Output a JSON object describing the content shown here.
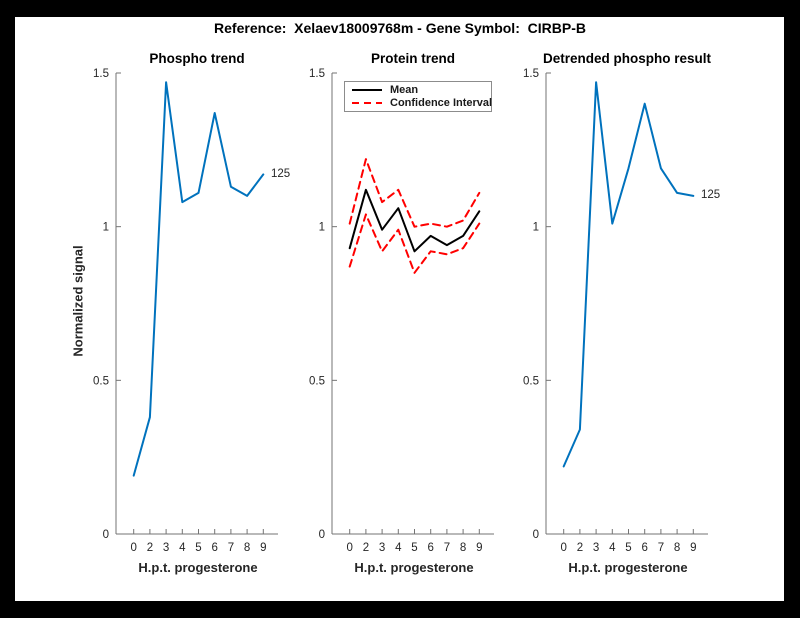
{
  "figure": {
    "title": "Reference:  Xelaev18009768m - Gene Symbol:  CIRBP-B",
    "frame_color": "#000000",
    "paper_color": "#ffffff"
  },
  "colors": {
    "blue": "#0072BD",
    "red": "#FF0000",
    "black": "#000000",
    "axis": "#737373",
    "tick_text": "#262626"
  },
  "axes": {
    "xlabel": "H.p.t. progesterone",
    "ylabel": "Normalized signal",
    "x_tick_labels": [
      "0",
      "2",
      "3",
      "4",
      "5",
      "6",
      "7",
      "8",
      "9"
    ],
    "y_tick_labels": [
      "0",
      "0.5",
      "1",
      "1.5"
    ],
    "y_tick_values": [
      0,
      0.5,
      1,
      1.5
    ],
    "ylim": [
      0,
      1.5
    ]
  },
  "chart_data": [
    {
      "type": "line",
      "title": "Phospho trend",
      "xlabel": "H.p.t. progesterone",
      "ylabel": "Normalized signal",
      "x_tick_labels": [
        "0",
        "2",
        "3",
        "4",
        "5",
        "6",
        "7",
        "8",
        "9"
      ],
      "ylim": [
        0,
        1.5
      ],
      "grid": false,
      "end_label": "125",
      "series": [
        {
          "name": "phospho-signal",
          "color": "blue",
          "style": "solid",
          "values": [
            0.19,
            0.38,
            1.47,
            1.08,
            1.11,
            1.37,
            1.13,
            1.1,
            1.17
          ]
        }
      ]
    },
    {
      "type": "line",
      "title": "Protein trend",
      "xlabel": "H.p.t. progesterone",
      "x_tick_labels": [
        "0",
        "2",
        "3",
        "4",
        "5",
        "6",
        "7",
        "8",
        "9"
      ],
      "ylim": [
        0,
        1.5
      ],
      "grid": false,
      "legend": {
        "position": "top-left",
        "entries": [
          {
            "label": "Mean",
            "style": "solid",
            "color": "black"
          },
          {
            "label": "Confidence Interval",
            "style": "dashed",
            "color": "red"
          }
        ]
      },
      "series": [
        {
          "name": "ci-upper",
          "color": "red",
          "style": "dashed",
          "values": [
            1.01,
            1.22,
            1.08,
            1.12,
            1.0,
            1.01,
            1.0,
            1.02,
            1.11
          ]
        },
        {
          "name": "ci-lower",
          "color": "red",
          "style": "dashed",
          "values": [
            0.87,
            1.04,
            0.92,
            0.99,
            0.85,
            0.92,
            0.91,
            0.93,
            1.01
          ]
        },
        {
          "name": "protein-mean",
          "color": "black",
          "style": "solid",
          "values": [
            0.93,
            1.12,
            0.99,
            1.06,
            0.92,
            0.97,
            0.94,
            0.97,
            1.05
          ]
        }
      ]
    },
    {
      "type": "line",
      "title": "Detrended phospho result",
      "xlabel": "H.p.t. progesterone",
      "x_tick_labels": [
        "0",
        "2",
        "3",
        "4",
        "5",
        "6",
        "7",
        "8",
        "9"
      ],
      "ylim": [
        0,
        1.5
      ],
      "grid": false,
      "end_label": "125",
      "series": [
        {
          "name": "detrended-signal",
          "color": "blue",
          "style": "solid",
          "values": [
            0.22,
            0.34,
            1.47,
            1.01,
            1.19,
            1.4,
            1.19,
            1.11,
            1.1
          ]
        }
      ]
    }
  ]
}
